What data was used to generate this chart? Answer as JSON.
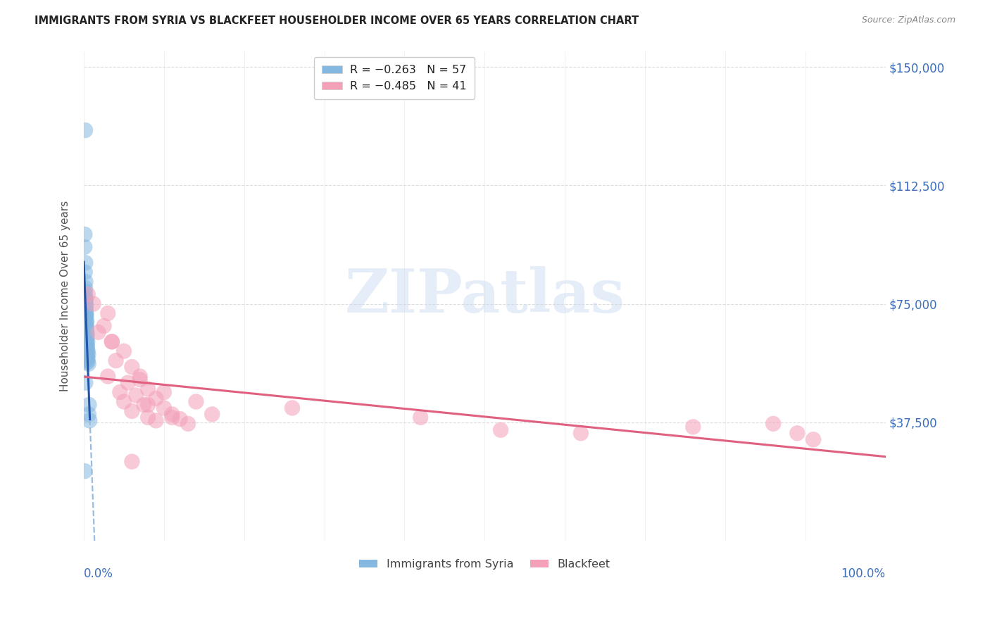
{
  "title": "IMMIGRANTS FROM SYRIA VS BLACKFEET HOUSEHOLDER INCOME OVER 65 YEARS CORRELATION CHART",
  "source": "Source: ZipAtlas.com",
  "ylabel": "Householder Income Over 65 years",
  "y_ticks": [
    0,
    37500,
    75000,
    112500,
    150000
  ],
  "y_tick_labels": [
    "",
    "$37,500",
    "$75,000",
    "$112,500",
    "$150,000"
  ],
  "x_min": 0.0,
  "x_max": 100.0,
  "y_min": 0,
  "y_max": 155000,
  "watermark_text": "ZIPatlas",
  "blue_color": "#85b8e0",
  "pink_color": "#f4a0b8",
  "blue_line_color": "#2255aa",
  "pink_line_color": "#e06080",
  "blue_dashed_color": "#99bbdd",
  "grid_color": "#dddddd",
  "syria_x": [
    0.18,
    0.12,
    0.1,
    0.2,
    0.15,
    0.22,
    0.18,
    0.14,
    0.16,
    0.2,
    0.25,
    0.18,
    0.22,
    0.15,
    0.28,
    0.2,
    0.25,
    0.18,
    0.22,
    0.3,
    0.25,
    0.28,
    0.22,
    0.2,
    0.35,
    0.3,
    0.25,
    0.28,
    0.32,
    0.22,
    0.35,
    0.28,
    0.4,
    0.3,
    0.38,
    0.25,
    0.35,
    0.45,
    0.3,
    0.4,
    0.35,
    0.42,
    0.38,
    0.48,
    0.35,
    0.55,
    0.4,
    0.45,
    0.38,
    0.5,
    0.42,
    0.58,
    0.65,
    0.6,
    0.72,
    0.12,
    0.2
  ],
  "syria_y": [
    130000,
    97000,
    93000,
    88000,
    85000,
    82000,
    80000,
    79000,
    78000,
    77000,
    76500,
    76000,
    75500,
    75000,
    74500,
    74000,
    73500,
    73000,
    72500,
    72000,
    71500,
    71000,
    70500,
    70000,
    69500,
    69000,
    68500,
    68000,
    67500,
    67000,
    66500,
    66000,
    65500,
    65000,
    64500,
    64000,
    63500,
    63000,
    62500,
    62000,
    61500,
    61000,
    60500,
    60000,
    59500,
    59000,
    58500,
    58000,
    57500,
    57000,
    56500,
    56000,
    43000,
    40000,
    38000,
    22000,
    50000
  ],
  "blackfeet_x": [
    0.5,
    1.2,
    3.0,
    2.5,
    1.8,
    3.5,
    5.0,
    4.0,
    6.0,
    3.0,
    7.0,
    5.5,
    8.0,
    4.5,
    6.5,
    9.0,
    5.0,
    7.5,
    10.0,
    6.0,
    11.0,
    8.0,
    12.0,
    9.0,
    3.5,
    13.0,
    7.0,
    10.0,
    14.0,
    8.0,
    16.0,
    11.0,
    26.0,
    42.0,
    52.0,
    62.0,
    76.0,
    86.0,
    91.0,
    89.0,
    6.0
  ],
  "blackfeet_y": [
    78000,
    75000,
    72000,
    68000,
    66000,
    63000,
    60000,
    57000,
    55000,
    52000,
    51000,
    50000,
    48000,
    47000,
    46000,
    45000,
    44000,
    43000,
    42000,
    41000,
    40000,
    39000,
    38500,
    38000,
    63000,
    37000,
    52000,
    47000,
    44000,
    43000,
    40000,
    39000,
    42000,
    39000,
    35000,
    34000,
    36000,
    37000,
    32000,
    34000,
    25000
  ]
}
